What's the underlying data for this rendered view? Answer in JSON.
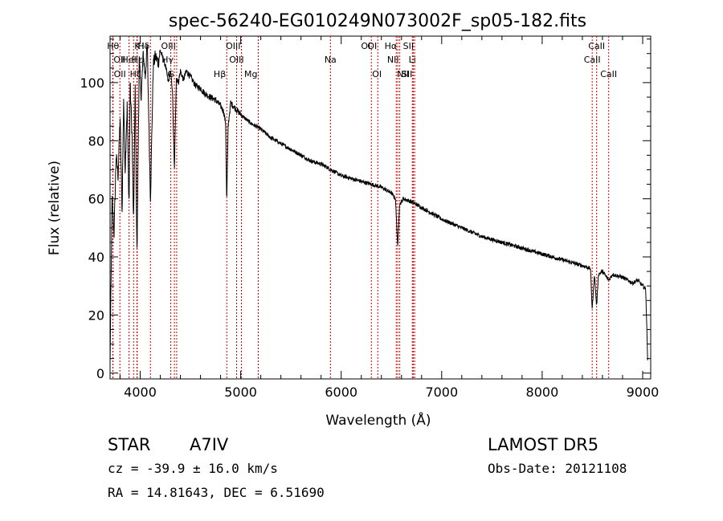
{
  "chart_data": {
    "type": "line",
    "title": "spec-56240-EG010249N073002F_sp05-182.fits",
    "xlabel": "Wavelength (Å)",
    "ylabel": "Flux (relative)",
    "xlim": [
      3700,
      9080
    ],
    "ylim": [
      -2,
      116
    ],
    "x_ticks": [
      4000,
      5000,
      6000,
      7000,
      8000,
      9000
    ],
    "y_ticks": [
      0,
      20,
      40,
      60,
      80,
      100
    ],
    "grid": false,
    "line_color": "#000000",
    "marker_color": "#cc0000",
    "series": [
      {
        "x": [
          3700,
          3720,
          3740,
          3760,
          3780,
          3800,
          3820,
          3835,
          3850,
          3870,
          3889,
          3900,
          3920,
          3934,
          3950,
          3968,
          3990,
          4010,
          4030,
          4050,
          4070,
          4102,
          4130,
          4150,
          4180,
          4200,
          4230,
          4250,
          4280,
          4300,
          4320,
          4340,
          4360,
          4380,
          4400,
          4430,
          4460,
          4500,
          4550,
          4600,
          4650,
          4700,
          4750,
          4800,
          4830,
          4850,
          4861,
          4875,
          4900,
          4950,
          5000,
          5100,
          5200,
          5300,
          5400,
          5500,
          5600,
          5700,
          5800,
          5900,
          6000,
          6100,
          6200,
          6300,
          6400,
          6450,
          6500,
          6540,
          6563,
          6580,
          6620,
          6700,
          6800,
          6900,
          7000,
          7200,
          7400,
          7600,
          7800,
          8000,
          8200,
          8400,
          8480,
          8498,
          8520,
          8542,
          8560,
          8600,
          8662,
          8700,
          8800,
          8900,
          8950,
          9000,
          9030,
          9050
        ],
        "y": [
          3,
          60,
          48,
          75,
          68,
          88,
          55,
          95,
          70,
          92,
          57,
          100,
          80,
          50,
          99,
          40,
          108,
          95,
          110,
          102,
          113,
          60,
          106,
          109,
          107,
          111,
          108,
          106,
          100,
          104,
          98,
          70,
          102,
          100,
          104,
          101,
          104,
          102,
          99,
          98,
          96,
          95,
          94,
          92,
          90,
          86,
          58,
          85,
          93,
          91,
          89,
          86,
          84,
          81,
          79,
          77,
          75,
          73,
          72,
          70,
          68,
          67,
          66,
          65,
          64,
          63,
          62,
          60,
          43,
          58,
          60,
          59,
          57,
          55,
          53,
          50,
          47,
          45,
          43,
          41,
          39,
          37,
          36,
          22,
          34,
          23,
          34,
          35,
          32,
          34,
          33,
          31,
          32,
          30,
          29,
          5
        ]
      }
    ],
    "lines": [
      {
        "label": "Hθ",
        "x": 3798,
        "row": 0,
        "side": "l"
      },
      {
        "label": "K",
        "x": 3934,
        "row": 0,
        "side": "r"
      },
      {
        "label": "Hδ",
        "x": 4102,
        "row": 0,
        "side": "l"
      },
      {
        "label": "OIII",
        "x": 4363,
        "row": 0,
        "side": "l"
      },
      {
        "label": "OIII",
        "x": 5007,
        "row": 0,
        "side": "l"
      },
      {
        "label": "OI",
        "x": 6364,
        "row": 0,
        "side": "l"
      },
      {
        "label": "Hα",
        "x": 6563,
        "row": 0,
        "side": "l"
      },
      {
        "label": "SII",
        "x": 6731,
        "row": 0,
        "side": "l"
      },
      {
        "label": "CaII",
        "x": 8542,
        "row": 0,
        "side": "c"
      },
      {
        "label": "OII",
        "x": 3727,
        "row": 1,
        "side": "r"
      },
      {
        "label": "HeI",
        "x": 3889,
        "row": 1,
        "side": "c"
      },
      {
        "label": "OIII",
        "x": 4959,
        "row": 1,
        "side": "c"
      },
      {
        "label": "NII",
        "x": 6583,
        "row": 1,
        "side": "l"
      },
      {
        "label": "Li",
        "x": 6708,
        "row": 1,
        "side": "c"
      },
      {
        "label": "CaII",
        "x": 8498,
        "row": 1,
        "side": "c"
      },
      {
        "label": "OII",
        "x": 3729,
        "row": 2,
        "side": "r"
      },
      {
        "label": "Hζ",
        "x": 3889,
        "row": 2,
        "side": "r"
      },
      {
        "label": "G",
        "x": 4304,
        "row": 2,
        "side": "c"
      },
      {
        "label": "Hβ",
        "x": 4861,
        "row": 2,
        "side": "l"
      },
      {
        "label": "Mg",
        "x": 5175,
        "row": 2,
        "side": "l"
      },
      {
        "label": "Na",
        "x": 5893,
        "row": 1,
        "side": "c"
      },
      {
        "label": "OI",
        "x": 6300,
        "row": 0,
        "side": "l"
      },
      {
        "label": "OI",
        "x": 6300,
        "row": 2,
        "side": "r"
      },
      {
        "label": "NII",
        "x": 6548,
        "row": 2,
        "side": "r"
      },
      {
        "label": "SII",
        "x": 6717,
        "row": 2,
        "side": "l"
      },
      {
        "label": "CaII",
        "x": 8662,
        "row": 2,
        "side": "c"
      },
      {
        "label": "Hγ",
        "x": 4340,
        "row": 1,
        "side": "l"
      },
      {
        "label": "Hε",
        "x": 3970,
        "row": 1,
        "side": "c"
      },
      {
        "label": "H",
        "x": 3968,
        "row": 0,
        "side": "r"
      }
    ]
  },
  "info": {
    "object_class": "STAR",
    "subclass": "A7IV",
    "survey": "LAMOST  DR5",
    "velocity": "cz = -39.9 ± 16.0 km/s",
    "obs_date": "Obs-Date: 20121108",
    "coords": "RA =  14.81643, DEC =   6.51690"
  }
}
